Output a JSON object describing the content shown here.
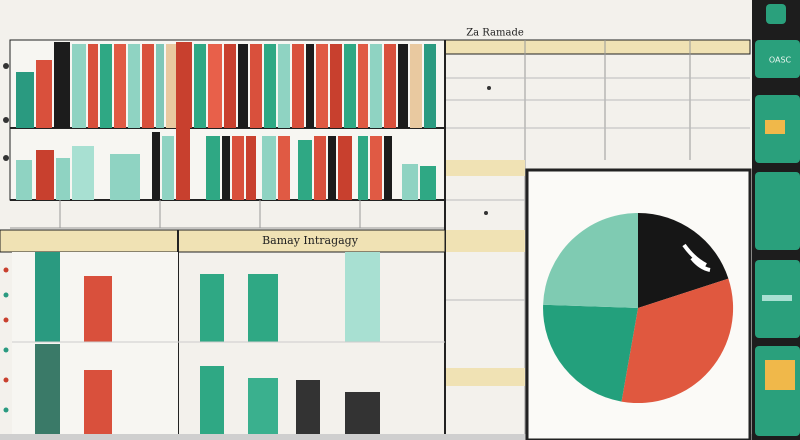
{
  "header": {
    "title": "Za Ramade"
  },
  "panel": {
    "title": "Bamay Intragagy"
  },
  "sidebar": {
    "label": "OASC"
  }
}
